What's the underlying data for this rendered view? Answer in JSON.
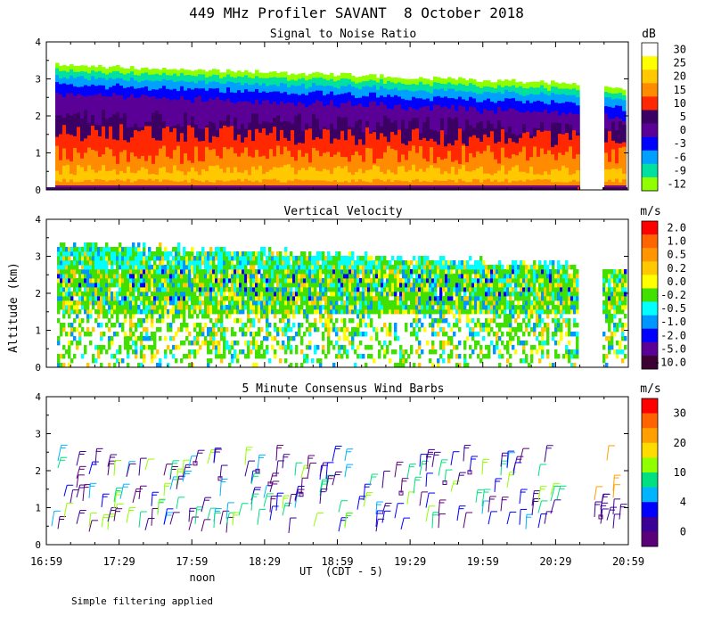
{
  "chart_data": {
    "title": "449 MHz Profiler SAVANT  8 October 2018",
    "ylabel": "Altitude (km)",
    "xlabel": "UT  (CDT - 5)",
    "x_ticks": [
      "16:59",
      "17:29",
      "17:59",
      "18:29",
      "18:59",
      "19:29",
      "19:59",
      "20:29",
      "20:59"
    ],
    "noon_label": "noon",
    "footnote": "Simple filtering applied",
    "panels": [
      {
        "type": "heatmap",
        "title": "Signal to Noise Ratio",
        "units": "dB",
        "ylim": [
          0,
          4
        ],
        "y_ticks": [
          "0",
          "1",
          "2",
          "3",
          "4"
        ],
        "legend_labels": [
          "30",
          "25",
          "20",
          "15",
          "10",
          "5",
          "0",
          "-3",
          "-6",
          "-9",
          "-12"
        ],
        "legend_colors": [
          "#ffffff",
          "#ffff00",
          "#ffc800",
          "#ff8c00",
          "#ff2800",
          "#3c0064",
          "#5a0096",
          "#0000ff",
          "#00a0ff",
          "#00e0a0",
          "#90ff00"
        ]
      },
      {
        "type": "heatmap",
        "title": "Vertical Velocity",
        "units": "m/s",
        "ylim": [
          0,
          4
        ],
        "y_ticks": [
          "0",
          "1",
          "2",
          "3",
          "4"
        ],
        "legend_labels": [
          "2.0",
          "1.0",
          "0.5",
          "0.2",
          "0.0",
          "-0.2",
          "-0.5",
          "-1.0",
          "-2.0",
          "-5.0",
          "-10.0"
        ],
        "legend_colors": [
          "#ff0000",
          "#ff6400",
          "#ff9600",
          "#ffc800",
          "#ffff00",
          "#40e000",
          "#00ffff",
          "#0096ff",
          "#0000ff",
          "#5a0096",
          "#3c0032"
        ]
      },
      {
        "type": "scatter",
        "title": "5 Minute Consensus Wind Barbs",
        "units": "m/s",
        "ylim": [
          0,
          4
        ],
        "y_ticks": [
          "0",
          "1",
          "2",
          "3",
          "4"
        ],
        "legend_labels": [
          "30",
          "20",
          "10",
          "4",
          "0"
        ],
        "legend_colors": [
          "#ff0000",
          "#ff6400",
          "#ffa000",
          "#ffdc00",
          "#90ff00",
          "#00e080",
          "#00b4ff",
          "#0000ff",
          "#3c0096",
          "#5a0078"
        ]
      }
    ]
  }
}
